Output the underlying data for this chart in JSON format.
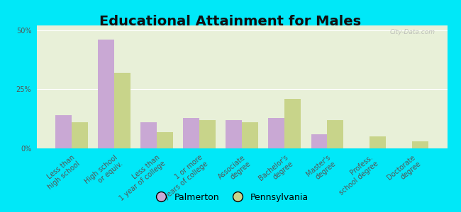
{
  "title": "Educational Attainment for Males",
  "categories": [
    "Less than\nhigh school",
    "High school\nor equiv.",
    "Less than\n1 year of college",
    "1 or more\nyears of college",
    "Associate\ndegree",
    "Bachelor's\ndegree",
    "Master's\ndegree",
    "Profess.\nschool degree",
    "Doctorate\ndegree"
  ],
  "palmerton": [
    14.0,
    46.0,
    11.0,
    13.0,
    12.0,
    13.0,
    6.0,
    0.0,
    0.0
  ],
  "pennsylvania": [
    11.0,
    32.0,
    7.0,
    12.0,
    11.0,
    21.0,
    12.0,
    5.0,
    3.0
  ],
  "palmerton_color": "#c9a8d4",
  "pennsylvania_color": "#c8d48a",
  "background_outer": "#00e8f8",
  "background_plot": "#e8f0d8",
  "ylim": [
    0,
    52
  ],
  "yticks": [
    0,
    25,
    50
  ],
  "bar_width": 0.38,
  "title_fontsize": 14,
  "tick_fontsize": 7,
  "legend_fontsize": 9,
  "watermark": "City-Data.com"
}
